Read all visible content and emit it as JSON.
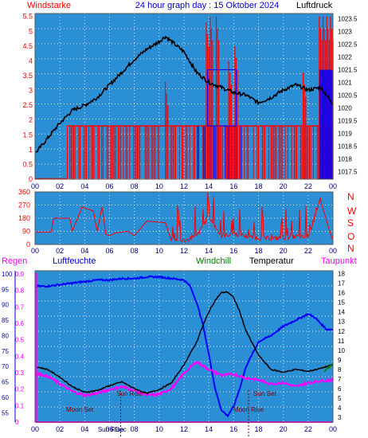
{
  "header": {
    "left_label": "Windstarke",
    "title": "24 hour graph day : 15 Oktober 2024",
    "right_label": "Luftdruck"
  },
  "legend": {
    "regen": "Regen",
    "luftfeuchte": "Luftfeuchte",
    "windchill": "Windchill",
    "temperatur": "Temperatur",
    "taupunkt": "Taupunkt"
  },
  "direction_letters": [
    "N",
    "W",
    "S",
    "O",
    "N"
  ],
  "colors": {
    "panel_bg": "#2b8fd6",
    "grid": "#ffffff",
    "wind": "#ff0000",
    "gust": "#0000ff",
    "pressure": "#000000",
    "temperature": "#000000",
    "humidity": "#0000ff",
    "dewpoint": "#ff00ff",
    "windchill": "#008000",
    "rain": "#ff00ff",
    "annotation": "#800000"
  },
  "chart_data": [
    {
      "type": "bar",
      "name_left": "Windstarke",
      "name_right": "Luftdruck",
      "x_ticks": [
        "00",
        "02",
        "04",
        "06",
        "08",
        "10",
        "12",
        "14",
        "16",
        "18",
        "20",
        "22",
        "00"
      ],
      "x_range_hours": [
        0,
        24
      ],
      "left_ticks": [
        "0",
        "0.5",
        "1",
        "1.5",
        "2",
        "2.5",
        "3",
        "3.5",
        "4",
        "4.5",
        "5",
        "5.5"
      ],
      "left_range": [
        0,
        5.6
      ],
      "right_ticks": [
        "1017.5",
        "1018",
        "1018.5",
        "1019",
        "1019.5",
        "1020",
        "1020.5",
        "1021",
        "1021.5",
        "1022",
        "1022.5",
        "1023",
        "1023.5"
      ],
      "right_range": [
        1017.2,
        1023.7
      ],
      "pressure_x": [
        0,
        1,
        2,
        3,
        4,
        5,
        6,
        7,
        8,
        9,
        10,
        10.5,
        11,
        12,
        13,
        14,
        15,
        16,
        17,
        18,
        19,
        20,
        21,
        22,
        23,
        23.5,
        24
      ],
      "pressure_y": [
        1018.2,
        1018.8,
        1019.4,
        1019.9,
        1020.1,
        1020.4,
        1020.9,
        1021.4,
        1021.9,
        1022.3,
        1022.6,
        1022.8,
        1022.6,
        1022.2,
        1021.4,
        1021.0,
        1020.8,
        1020.6,
        1020.5,
        1020.2,
        1020.4,
        1020.7,
        1020.9,
        1020.7,
        1020.8,
        1020.5,
        1020.1
      ],
      "wind_baseline": 1.8,
      "wind_active_hours": [
        2.6,
        24
      ],
      "tall_spikes_hours": [
        10.5,
        13.8,
        14.1,
        14.6,
        15.6,
        16.1,
        21.6,
        22.9,
        23.2,
        23.5,
        23.8
      ],
      "tall_spike_values": [
        3.3,
        5.3,
        5.5,
        5.5,
        4.0,
        4.5,
        3.6,
        5.5,
        5.5,
        5.5,
        5.5
      ]
    },
    {
      "type": "line",
      "name": "Windrichtung",
      "x_ticks": [
        "00",
        "02",
        "04",
        "06",
        "08",
        "10",
        "12",
        "14",
        "16",
        "18",
        "20",
        "22",
        "00"
      ],
      "y_ticks": [
        "0",
        "90",
        "180",
        "270",
        "360"
      ],
      "y_range": [
        0,
        360
      ],
      "x": [
        0,
        1.3,
        1.5,
        2.8,
        3.0,
        3.8,
        4.0,
        4.7,
        5.0,
        5.4,
        5.7,
        6.0,
        6.5,
        7.5,
        8.0,
        9.0,
        10.5,
        11.0,
        12.0,
        13.0,
        14.0,
        15.0,
        16.0,
        17.0,
        18.0,
        19.0,
        20.0,
        21.0,
        22.0,
        23.0,
        24.0
      ],
      "y": [
        85,
        85,
        180,
        180,
        90,
        260,
        250,
        230,
        90,
        260,
        70,
        60,
        80,
        90,
        60,
        160,
        150,
        20,
        10,
        40,
        180,
        40,
        60,
        40,
        30,
        25,
        30,
        40,
        30,
        300,
        20
      ]
    },
    {
      "type": "line",
      "name_left_outer": "Regen",
      "name_left": "Luftfeuchte",
      "name_right": "Temperatur",
      "x_ticks": [
        "00",
        "02",
        "04",
        "06",
        "08",
        "10",
        "12",
        "14",
        "16",
        "18",
        "20",
        "22",
        "00"
      ],
      "regen_ticks": [
        "0",
        "0.1",
        "0.2",
        "0.3",
        "0.4",
        "0.5",
        "0.6",
        "0.7",
        "0.8",
        "0.9"
      ],
      "humidity_ticks": [
        "55",
        "60",
        "65",
        "70",
        "75",
        "80",
        "85",
        "90",
        "95",
        "100"
      ],
      "humidity_range": [
        52,
        101
      ],
      "temp_ticks": [
        "3",
        "4",
        "5",
        "6",
        "7",
        "8",
        "9",
        "10",
        "11",
        "12",
        "13",
        "14",
        "15",
        "16",
        "17",
        "18"
      ],
      "temp_range": [
        2.5,
        18.3
      ],
      "annotations": [
        {
          "label": "Moon Set",
          "hour": 3.6
        },
        {
          "label": "Sun Rise",
          "hour": 7.6
        },
        {
          "label": "Sun Set",
          "hour": 18.5
        },
        {
          "label": "Moon Rise",
          "hour": 17.2
        },
        {
          "label": "Sun Rise",
          "hour": 6.1
        },
        {
          "label": "Dec",
          "hour": 6.9
        }
      ],
      "rain_x": [
        0,
        0.1,
        0.1,
        24
      ],
      "rain_y": [
        0.9,
        0.9,
        0,
        0
      ],
      "humidity_x": [
        0,
        1,
        2,
        3,
        4,
        5,
        6,
        7,
        8,
        9,
        10,
        11,
        12,
        12.5,
        13,
        13.5,
        14,
        14.5,
        15,
        15.5,
        16,
        16.5,
        17,
        18,
        19,
        20,
        21,
        22,
        22.5,
        23,
        23.5,
        24
      ],
      "humidity_y": [
        96,
        96,
        96.5,
        97,
        97.5,
        98,
        98,
        98.5,
        98.5,
        99,
        99,
        98.5,
        98,
        96,
        91,
        84,
        74,
        63,
        56,
        54,
        57,
        63,
        70,
        78,
        80,
        83,
        85,
        87,
        86,
        84,
        82,
        82
      ],
      "temperature_x": [
        0,
        1,
        2,
        3,
        4,
        5,
        6,
        7,
        8,
        9,
        10,
        11,
        12,
        13,
        13.5,
        14,
        14.5,
        15,
        15.5,
        16,
        16.5,
        17,
        18,
        19,
        20,
        21,
        22,
        23,
        24
      ],
      "temperature_y": [
        8.3,
        8.0,
        7.2,
        6.2,
        5.6,
        5.8,
        6.3,
        6.7,
        6.0,
        5.5,
        5.9,
        6.6,
        8.5,
        10.8,
        12.5,
        14.0,
        15.2,
        16.0,
        16.1,
        15.5,
        14.0,
        12.0,
        9.5,
        8.0,
        7.7,
        8.0,
        7.8,
        8.1,
        8.5
      ],
      "dewpoint_x": [
        0,
        1,
        2,
        3,
        4,
        5,
        6,
        7,
        8,
        9,
        10,
        11,
        12,
        13,
        14,
        15,
        16,
        17,
        18,
        19,
        20,
        21,
        22,
        23,
        24
      ],
      "dewpoint_y": [
        7.6,
        7.3,
        6.5,
        5.7,
        5.3,
        5.5,
        5.9,
        6.2,
        5.8,
        5.3,
        5.4,
        6.0,
        7.6,
        8.8,
        8.0,
        7.4,
        7.5,
        7.1,
        6.9,
        6.5,
        6.6,
        6.2,
        6.6,
        6.8,
        6.9
      ],
      "windchill_x": [
        23.3,
        23.6,
        23.9,
        24
      ],
      "windchill_y": [
        7.7,
        8.2,
        8.4,
        8.6
      ]
    }
  ]
}
